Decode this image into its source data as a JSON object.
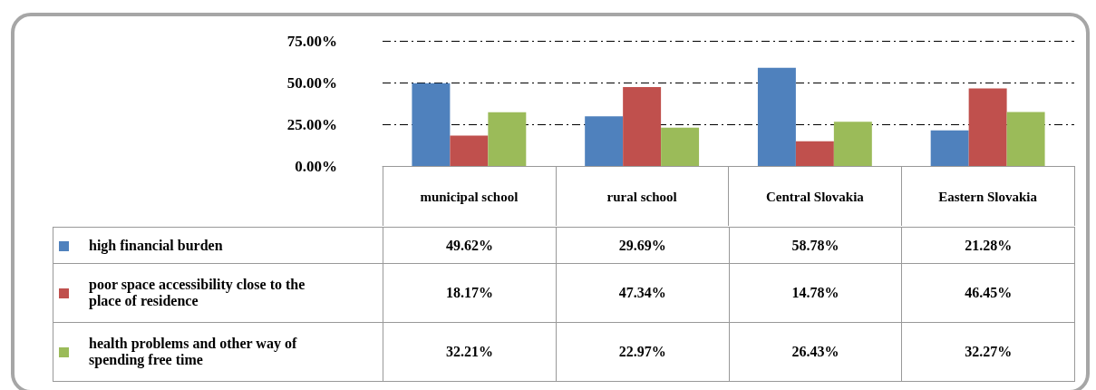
{
  "chart_data": {
    "type": "bar",
    "categories": [
      "municipal school",
      "rural school",
      "Central Slovakia",
      "Eastern Slovakia"
    ],
    "series": [
      {
        "name": "high financial burden",
        "color": "#4f81bd",
        "values": [
          49.62,
          29.69,
          58.78,
          21.28
        ],
        "value_labels": [
          "49.62%",
          "29.69%",
          "58.78%",
          "21.28%"
        ]
      },
      {
        "name": "poor space accessibility close to the place of residence",
        "color": "#c0504d",
        "values": [
          18.17,
          47.34,
          14.78,
          46.45
        ],
        "value_labels": [
          "18.17%",
          "47.34%",
          "14.78%",
          "46.45%"
        ]
      },
      {
        "name": "health problems and other way of spending free time",
        "color": "#9bbb59",
        "values": [
          32.21,
          22.97,
          26.43,
          32.27
        ],
        "value_labels": [
          "32.21%",
          "22.97%",
          "26.43%",
          "32.27%"
        ]
      }
    ],
    "ylim": [
      0,
      75
    ],
    "yticks": [
      {
        "value": 0,
        "label": "0.00%"
      },
      {
        "value": 25,
        "label": "25.00%"
      },
      {
        "value": 50,
        "label": "50.00%"
      },
      {
        "value": 75,
        "label": "75.00%"
      }
    ],
    "grid": "y",
    "line_style": "dashed",
    "legend": "bottom left"
  }
}
